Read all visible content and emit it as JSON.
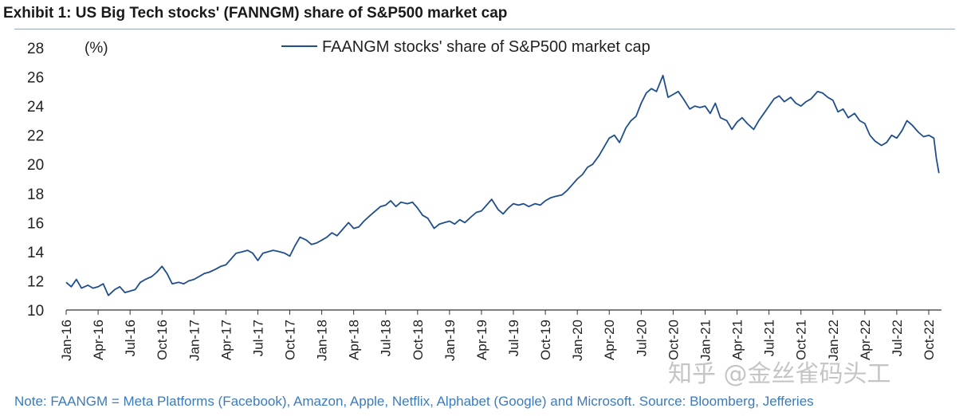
{
  "title": "Exhibit 1: US Big Tech stocks' (FANNGM) share of S&P500 market cap",
  "note": "Note: FAANGM = Meta Platforms  (Facebook), Amazon, Apple, Netflix, Alphabet (Google) and Microsoft. Source: Bloomberg, Jefferies",
  "watermark": "知乎 @金丝雀码头工",
  "colors": {
    "line": "#1f4e8c",
    "axis": "#333333",
    "text": "#222222",
    "note": "#3a7bbf"
  },
  "chart_data": {
    "type": "line",
    "title": "Exhibit 1: US Big Tech stocks' (FANNGM) share of S&P500 market cap",
    "ylabel": "(%)",
    "xlabel": "",
    "ylim": [
      10,
      28
    ],
    "yticks": [
      10,
      12,
      14,
      16,
      18,
      20,
      22,
      24,
      26,
      28
    ],
    "xlim": [
      2016.0,
      2022.85
    ],
    "grid": false,
    "legend_position": "top-center",
    "xticks": [
      {
        "label": "Jan-16",
        "t": 2016.0
      },
      {
        "label": "Apr-16",
        "t": 2016.25
      },
      {
        "label": "Jul-16",
        "t": 2016.5
      },
      {
        "label": "Oct-16",
        "t": 2016.75
      },
      {
        "label": "Jan-17",
        "t": 2017.0
      },
      {
        "label": "Apr-17",
        "t": 2017.25
      },
      {
        "label": "Jul-17",
        "t": 2017.5
      },
      {
        "label": "Oct-17",
        "t": 2017.75
      },
      {
        "label": "Jan-18",
        "t": 2018.0
      },
      {
        "label": "Apr-18",
        "t": 2018.25
      },
      {
        "label": "Jul-18",
        "t": 2018.5
      },
      {
        "label": "Oct-18",
        "t": 2018.75
      },
      {
        "label": "Jan-19",
        "t": 2019.0
      },
      {
        "label": "Apr-19",
        "t": 2019.25
      },
      {
        "label": "Jul-19",
        "t": 2019.5
      },
      {
        "label": "Oct-19",
        "t": 2019.75
      },
      {
        "label": "Jan-20",
        "t": 2020.0
      },
      {
        "label": "Apr-20",
        "t": 2020.25
      },
      {
        "label": "Jul-20",
        "t": 2020.5
      },
      {
        "label": "Oct-20",
        "t": 2020.75
      },
      {
        "label": "Jan-21",
        "t": 2021.0
      },
      {
        "label": "Apr-21",
        "t": 2021.25
      },
      {
        "label": "Jul-21",
        "t": 2021.5
      },
      {
        "label": "Oct-21",
        "t": 2021.75
      },
      {
        "label": "Jan-22",
        "t": 2022.0
      },
      {
        "label": "Apr-22",
        "t": 2022.25
      },
      {
        "label": "Jul-22",
        "t": 2022.5
      },
      {
        "label": "Oct-22",
        "t": 2022.75
      }
    ],
    "series": [
      {
        "name": "FAANGM stocks' share of S&P500 market cap",
        "points": [
          [
            2016.0,
            11.9
          ],
          [
            2016.04,
            11.6
          ],
          [
            2016.08,
            12.1
          ],
          [
            2016.12,
            11.5
          ],
          [
            2016.17,
            11.7
          ],
          [
            2016.21,
            11.5
          ],
          [
            2016.25,
            11.6
          ],
          [
            2016.29,
            11.8
          ],
          [
            2016.33,
            11.0
          ],
          [
            2016.38,
            11.4
          ],
          [
            2016.42,
            11.6
          ],
          [
            2016.46,
            11.2
          ],
          [
            2016.5,
            11.3
          ],
          [
            2016.54,
            11.4
          ],
          [
            2016.58,
            11.9
          ],
          [
            2016.62,
            12.1
          ],
          [
            2016.67,
            12.3
          ],
          [
            2016.71,
            12.6
          ],
          [
            2016.75,
            13.0
          ],
          [
            2016.79,
            12.5
          ],
          [
            2016.83,
            11.8
          ],
          [
            2016.88,
            11.9
          ],
          [
            2016.92,
            11.8
          ],
          [
            2016.96,
            12.0
          ],
          [
            2017.0,
            12.1
          ],
          [
            2017.04,
            12.3
          ],
          [
            2017.08,
            12.5
          ],
          [
            2017.12,
            12.6
          ],
          [
            2017.17,
            12.8
          ],
          [
            2017.21,
            13.0
          ],
          [
            2017.25,
            13.1
          ],
          [
            2017.29,
            13.5
          ],
          [
            2017.33,
            13.9
          ],
          [
            2017.38,
            14.0
          ],
          [
            2017.42,
            14.1
          ],
          [
            2017.46,
            13.9
          ],
          [
            2017.5,
            13.4
          ],
          [
            2017.54,
            13.9
          ],
          [
            2017.58,
            14.0
          ],
          [
            2017.62,
            14.1
          ],
          [
            2017.67,
            14.0
          ],
          [
            2017.71,
            13.9
          ],
          [
            2017.75,
            13.7
          ],
          [
            2017.79,
            14.4
          ],
          [
            2017.83,
            15.0
          ],
          [
            2017.88,
            14.8
          ],
          [
            2017.92,
            14.5
          ],
          [
            2017.96,
            14.6
          ],
          [
            2018.0,
            14.8
          ],
          [
            2018.04,
            15.0
          ],
          [
            2018.08,
            15.3
          ],
          [
            2018.12,
            15.1
          ],
          [
            2018.17,
            15.6
          ],
          [
            2018.21,
            16.0
          ],
          [
            2018.25,
            15.6
          ],
          [
            2018.29,
            15.7
          ],
          [
            2018.33,
            16.1
          ],
          [
            2018.38,
            16.5
          ],
          [
            2018.42,
            16.8
          ],
          [
            2018.46,
            17.1
          ],
          [
            2018.5,
            17.2
          ],
          [
            2018.54,
            17.5
          ],
          [
            2018.58,
            17.1
          ],
          [
            2018.62,
            17.4
          ],
          [
            2018.67,
            17.3
          ],
          [
            2018.71,
            17.4
          ],
          [
            2018.75,
            17.0
          ],
          [
            2018.79,
            16.5
          ],
          [
            2018.83,
            16.3
          ],
          [
            2018.88,
            15.6
          ],
          [
            2018.92,
            15.9
          ],
          [
            2018.96,
            16.0
          ],
          [
            2019.0,
            16.1
          ],
          [
            2019.04,
            15.9
          ],
          [
            2019.08,
            16.2
          ],
          [
            2019.12,
            16.0
          ],
          [
            2019.17,
            16.4
          ],
          [
            2019.21,
            16.7
          ],
          [
            2019.25,
            16.8
          ],
          [
            2019.29,
            17.2
          ],
          [
            2019.33,
            17.6
          ],
          [
            2019.38,
            16.9
          ],
          [
            2019.42,
            16.6
          ],
          [
            2019.46,
            17.0
          ],
          [
            2019.5,
            17.3
          ],
          [
            2019.54,
            17.2
          ],
          [
            2019.58,
            17.3
          ],
          [
            2019.62,
            17.1
          ],
          [
            2019.67,
            17.3
          ],
          [
            2019.71,
            17.2
          ],
          [
            2019.75,
            17.5
          ],
          [
            2019.79,
            17.7
          ],
          [
            2019.83,
            17.8
          ],
          [
            2019.88,
            17.9
          ],
          [
            2019.92,
            18.2
          ],
          [
            2019.96,
            18.6
          ],
          [
            2020.0,
            19.0
          ],
          [
            2020.04,
            19.3
          ],
          [
            2020.08,
            19.8
          ],
          [
            2020.12,
            20.0
          ],
          [
            2020.17,
            20.6
          ],
          [
            2020.21,
            21.2
          ],
          [
            2020.25,
            21.8
          ],
          [
            2020.29,
            22.0
          ],
          [
            2020.33,
            21.5
          ],
          [
            2020.38,
            22.5
          ],
          [
            2020.42,
            23.0
          ],
          [
            2020.46,
            23.3
          ],
          [
            2020.5,
            24.2
          ],
          [
            2020.54,
            24.9
          ],
          [
            2020.58,
            25.2
          ],
          [
            2020.62,
            25.0
          ],
          [
            2020.67,
            26.1
          ],
          [
            2020.71,
            24.6
          ],
          [
            2020.75,
            24.8
          ],
          [
            2020.79,
            25.0
          ],
          [
            2020.83,
            24.5
          ],
          [
            2020.88,
            23.8
          ],
          [
            2020.92,
            24.0
          ],
          [
            2020.96,
            23.9
          ],
          [
            2021.0,
            24.0
          ],
          [
            2021.04,
            23.5
          ],
          [
            2021.08,
            24.2
          ],
          [
            2021.12,
            23.2
          ],
          [
            2021.17,
            23.0
          ],
          [
            2021.21,
            22.4
          ],
          [
            2021.25,
            22.9
          ],
          [
            2021.29,
            23.2
          ],
          [
            2021.33,
            22.8
          ],
          [
            2021.38,
            22.4
          ],
          [
            2021.42,
            23.0
          ],
          [
            2021.46,
            23.5
          ],
          [
            2021.5,
            24.0
          ],
          [
            2021.54,
            24.5
          ],
          [
            2021.58,
            24.7
          ],
          [
            2021.62,
            24.3
          ],
          [
            2021.67,
            24.6
          ],
          [
            2021.71,
            24.2
          ],
          [
            2021.75,
            24.0
          ],
          [
            2021.79,
            24.3
          ],
          [
            2021.83,
            24.5
          ],
          [
            2021.88,
            25.0
          ],
          [
            2021.92,
            24.9
          ],
          [
            2021.96,
            24.6
          ],
          [
            2022.0,
            24.4
          ],
          [
            2022.04,
            23.6
          ],
          [
            2022.08,
            23.8
          ],
          [
            2022.12,
            23.2
          ],
          [
            2022.17,
            23.5
          ],
          [
            2022.21,
            23.0
          ],
          [
            2022.25,
            22.8
          ],
          [
            2022.29,
            22.0
          ],
          [
            2022.33,
            21.6
          ],
          [
            2022.38,
            21.3
          ],
          [
            2022.42,
            21.5
          ],
          [
            2022.46,
            22.0
          ],
          [
            2022.5,
            21.8
          ],
          [
            2022.54,
            22.3
          ],
          [
            2022.58,
            23.0
          ],
          [
            2022.62,
            22.7
          ],
          [
            2022.67,
            22.2
          ],
          [
            2022.71,
            21.9
          ],
          [
            2022.75,
            22.0
          ],
          [
            2022.79,
            21.8
          ],
          [
            2022.81,
            20.4
          ],
          [
            2022.83,
            19.4
          ]
        ]
      }
    ]
  }
}
